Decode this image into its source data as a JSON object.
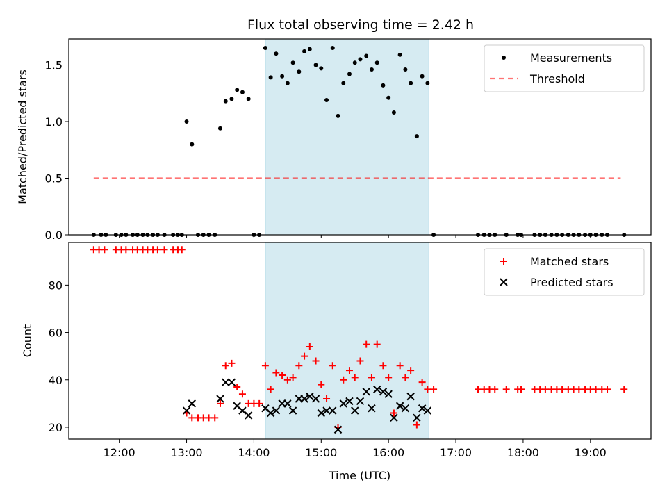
{
  "title": "Flux total observing time = 2.42 h",
  "colors": {
    "highlight": "#add8e6",
    "measurement": "#000000",
    "threshold": "#ff0000",
    "matched": "#ff0000",
    "predicted": "#000000"
  },
  "chart_data": [
    {
      "type": "scatter",
      "panel": "top",
      "ylabel": "Matched/Predicted stars",
      "xlim": [
        11.25,
        19.9
      ],
      "ylim": [
        0,
        1.73
      ],
      "yticks": [
        0.0,
        0.5,
        1.0,
        1.5
      ],
      "ytick_labels": [
        "0.0",
        "0.5",
        "1.0",
        "1.5"
      ],
      "highlight_span": [
        14.17,
        16.6
      ],
      "legend_position": "top-right",
      "series": [
        {
          "name": "Measurements",
          "marker": "dot",
          "points": [
            [
              11.62,
              0
            ],
            [
              11.73,
              0
            ],
            [
              11.8,
              0
            ],
            [
              11.95,
              0
            ],
            [
              12.03,
              0
            ],
            [
              12.1,
              0
            ],
            [
              12.2,
              0
            ],
            [
              12.27,
              0
            ],
            [
              12.35,
              0
            ],
            [
              12.42,
              0
            ],
            [
              12.5,
              0
            ],
            [
              12.57,
              0
            ],
            [
              12.67,
              0
            ],
            [
              12.8,
              0
            ],
            [
              12.87,
              0
            ],
            [
              12.93,
              0
            ],
            [
              13.0,
              1.0
            ],
            [
              13.08,
              0.8
            ],
            [
              13.17,
              0
            ],
            [
              13.25,
              0
            ],
            [
              13.33,
              0
            ],
            [
              13.42,
              0
            ],
            [
              13.5,
              0.94
            ],
            [
              13.58,
              1.18
            ],
            [
              13.67,
              1.2
            ],
            [
              13.75,
              1.28
            ],
            [
              13.83,
              1.26
            ],
            [
              13.92,
              1.2
            ],
            [
              14.0,
              0
            ],
            [
              14.08,
              0
            ],
            [
              14.17,
              1.65
            ],
            [
              14.25,
              1.39
            ],
            [
              14.33,
              1.6
            ],
            [
              14.42,
              1.4
            ],
            [
              14.5,
              1.34
            ],
            [
              14.58,
              1.52
            ],
            [
              14.67,
              1.44
            ],
            [
              14.75,
              1.62
            ],
            [
              14.83,
              1.64
            ],
            [
              14.92,
              1.5
            ],
            [
              15.0,
              1.47
            ],
            [
              15.08,
              1.19
            ],
            [
              15.17,
              1.65
            ],
            [
              15.25,
              1.05
            ],
            [
              15.33,
              1.34
            ],
            [
              15.42,
              1.42
            ],
            [
              15.5,
              1.52
            ],
            [
              15.58,
              1.55
            ],
            [
              15.67,
              1.58
            ],
            [
              15.75,
              1.46
            ],
            [
              15.83,
              1.52
            ],
            [
              15.92,
              1.32
            ],
            [
              16.0,
              1.21
            ],
            [
              16.08,
              1.08
            ],
            [
              16.17,
              1.59
            ],
            [
              16.25,
              1.46
            ],
            [
              16.33,
              1.34
            ],
            [
              16.42,
              0.87
            ],
            [
              16.5,
              1.4
            ],
            [
              16.58,
              1.34
            ],
            [
              16.67,
              0
            ],
            [
              17.33,
              0
            ],
            [
              17.42,
              0
            ],
            [
              17.5,
              0
            ],
            [
              17.58,
              0
            ],
            [
              17.75,
              0
            ],
            [
              17.92,
              0
            ],
            [
              17.97,
              0
            ],
            [
              18.17,
              0
            ],
            [
              18.25,
              0
            ],
            [
              18.33,
              0
            ],
            [
              18.42,
              0
            ],
            [
              18.5,
              0
            ],
            [
              18.58,
              0
            ],
            [
              18.67,
              0
            ],
            [
              18.75,
              0
            ],
            [
              18.83,
              0
            ],
            [
              18.92,
              0
            ],
            [
              19.0,
              0
            ],
            [
              19.08,
              0
            ],
            [
              19.17,
              0
            ],
            [
              19.25,
              0
            ],
            [
              19.5,
              0
            ]
          ]
        },
        {
          "name": "Threshold",
          "marker": "dashed-line",
          "points": [
            [
              11.62,
              0.5
            ],
            [
              19.45,
              0.5
            ]
          ]
        }
      ]
    },
    {
      "type": "scatter",
      "panel": "bottom",
      "xlabel": "Time (UTC)",
      "ylabel": "Count",
      "xlim": [
        11.25,
        19.9
      ],
      "ylim": [
        15,
        98
      ],
      "yticks": [
        20,
        40,
        60,
        80
      ],
      "ytick_labels": [
        "20",
        "40",
        "60",
        "80"
      ],
      "xticks": [
        12,
        13,
        14,
        15,
        16,
        17,
        18,
        19
      ],
      "xtick_labels": [
        "12:00",
        "13:00",
        "14:00",
        "15:00",
        "16:00",
        "17:00",
        "18:00",
        "19:00"
      ],
      "highlight_span": [
        14.17,
        16.6
      ],
      "legend_position": "top-right",
      "series": [
        {
          "name": "Matched stars",
          "marker": "plus",
          "points": [
            [
              11.62,
              95
            ],
            [
              11.7,
              95
            ],
            [
              11.78,
              95
            ],
            [
              11.95,
              95
            ],
            [
              12.03,
              95
            ],
            [
              12.1,
              95
            ],
            [
              12.2,
              95
            ],
            [
              12.27,
              95
            ],
            [
              12.35,
              95
            ],
            [
              12.42,
              95
            ],
            [
              12.5,
              95
            ],
            [
              12.57,
              95
            ],
            [
              12.67,
              95
            ],
            [
              12.8,
              95
            ],
            [
              12.87,
              95
            ],
            [
              12.93,
              95
            ],
            [
              13.0,
              26
            ],
            [
              13.08,
              24
            ],
            [
              13.17,
              24
            ],
            [
              13.25,
              24
            ],
            [
              13.33,
              24
            ],
            [
              13.42,
              24
            ],
            [
              13.5,
              30
            ],
            [
              13.58,
              46
            ],
            [
              13.67,
              47
            ],
            [
              13.75,
              37
            ],
            [
              13.83,
              34
            ],
            [
              13.92,
              30
            ],
            [
              14.0,
              30
            ],
            [
              14.08,
              30
            ],
            [
              14.17,
              46
            ],
            [
              14.25,
              36
            ],
            [
              14.33,
              43
            ],
            [
              14.42,
              42
            ],
            [
              14.5,
              40
            ],
            [
              14.58,
              41
            ],
            [
              14.67,
              46
            ],
            [
              14.75,
              50
            ],
            [
              14.83,
              54
            ],
            [
              14.92,
              48
            ],
            [
              15.0,
              38
            ],
            [
              15.08,
              32
            ],
            [
              15.17,
              46
            ],
            [
              15.25,
              20
            ],
            [
              15.33,
              40
            ],
            [
              15.42,
              44
            ],
            [
              15.5,
              41
            ],
            [
              15.58,
              48
            ],
            [
              15.67,
              55
            ],
            [
              15.75,
              41
            ],
            [
              15.83,
              55
            ],
            [
              15.92,
              46
            ],
            [
              16.0,
              41
            ],
            [
              16.08,
              26
            ],
            [
              16.17,
              46
            ],
            [
              16.25,
              41
            ],
            [
              16.33,
              44
            ],
            [
              16.42,
              21
            ],
            [
              16.5,
              39
            ],
            [
              16.58,
              36
            ],
            [
              16.67,
              36
            ],
            [
              17.33,
              36
            ],
            [
              17.42,
              36
            ],
            [
              17.5,
              36
            ],
            [
              17.58,
              36
            ],
            [
              17.75,
              36
            ],
            [
              17.92,
              36
            ],
            [
              17.97,
              36
            ],
            [
              18.17,
              36
            ],
            [
              18.25,
              36
            ],
            [
              18.33,
              36
            ],
            [
              18.42,
              36
            ],
            [
              18.5,
              36
            ],
            [
              18.58,
              36
            ],
            [
              18.67,
              36
            ],
            [
              18.75,
              36
            ],
            [
              18.83,
              36
            ],
            [
              18.92,
              36
            ],
            [
              19.0,
              36
            ],
            [
              19.08,
              36
            ],
            [
              19.17,
              36
            ],
            [
              19.25,
              36
            ],
            [
              19.5,
              36
            ]
          ]
        },
        {
          "name": "Predicted stars",
          "marker": "x",
          "points": [
            [
              13.0,
              27
            ],
            [
              13.08,
              30
            ],
            [
              13.5,
              32
            ],
            [
              13.58,
              39
            ],
            [
              13.67,
              39
            ],
            [
              13.75,
              29
            ],
            [
              13.83,
              27
            ],
            [
              13.92,
              25
            ],
            [
              14.17,
              28
            ],
            [
              14.25,
              26
            ],
            [
              14.33,
              27
            ],
            [
              14.42,
              30
            ],
            [
              14.5,
              30
            ],
            [
              14.58,
              27
            ],
            [
              14.67,
              32
            ],
            [
              14.75,
              32
            ],
            [
              14.83,
              33
            ],
            [
              14.92,
              32
            ],
            [
              15.0,
              26
            ],
            [
              15.08,
              27
            ],
            [
              15.17,
              27
            ],
            [
              15.25,
              19
            ],
            [
              15.33,
              30
            ],
            [
              15.42,
              31
            ],
            [
              15.5,
              27
            ],
            [
              15.58,
              31
            ],
            [
              15.67,
              35
            ],
            [
              15.75,
              28
            ],
            [
              15.83,
              36
            ],
            [
              15.92,
              35
            ],
            [
              16.0,
              34
            ],
            [
              16.08,
              24
            ],
            [
              16.17,
              29
            ],
            [
              16.25,
              28
            ],
            [
              16.33,
              33
            ],
            [
              16.42,
              24
            ],
            [
              16.5,
              28
            ],
            [
              16.58,
              27
            ]
          ]
        }
      ]
    }
  ]
}
